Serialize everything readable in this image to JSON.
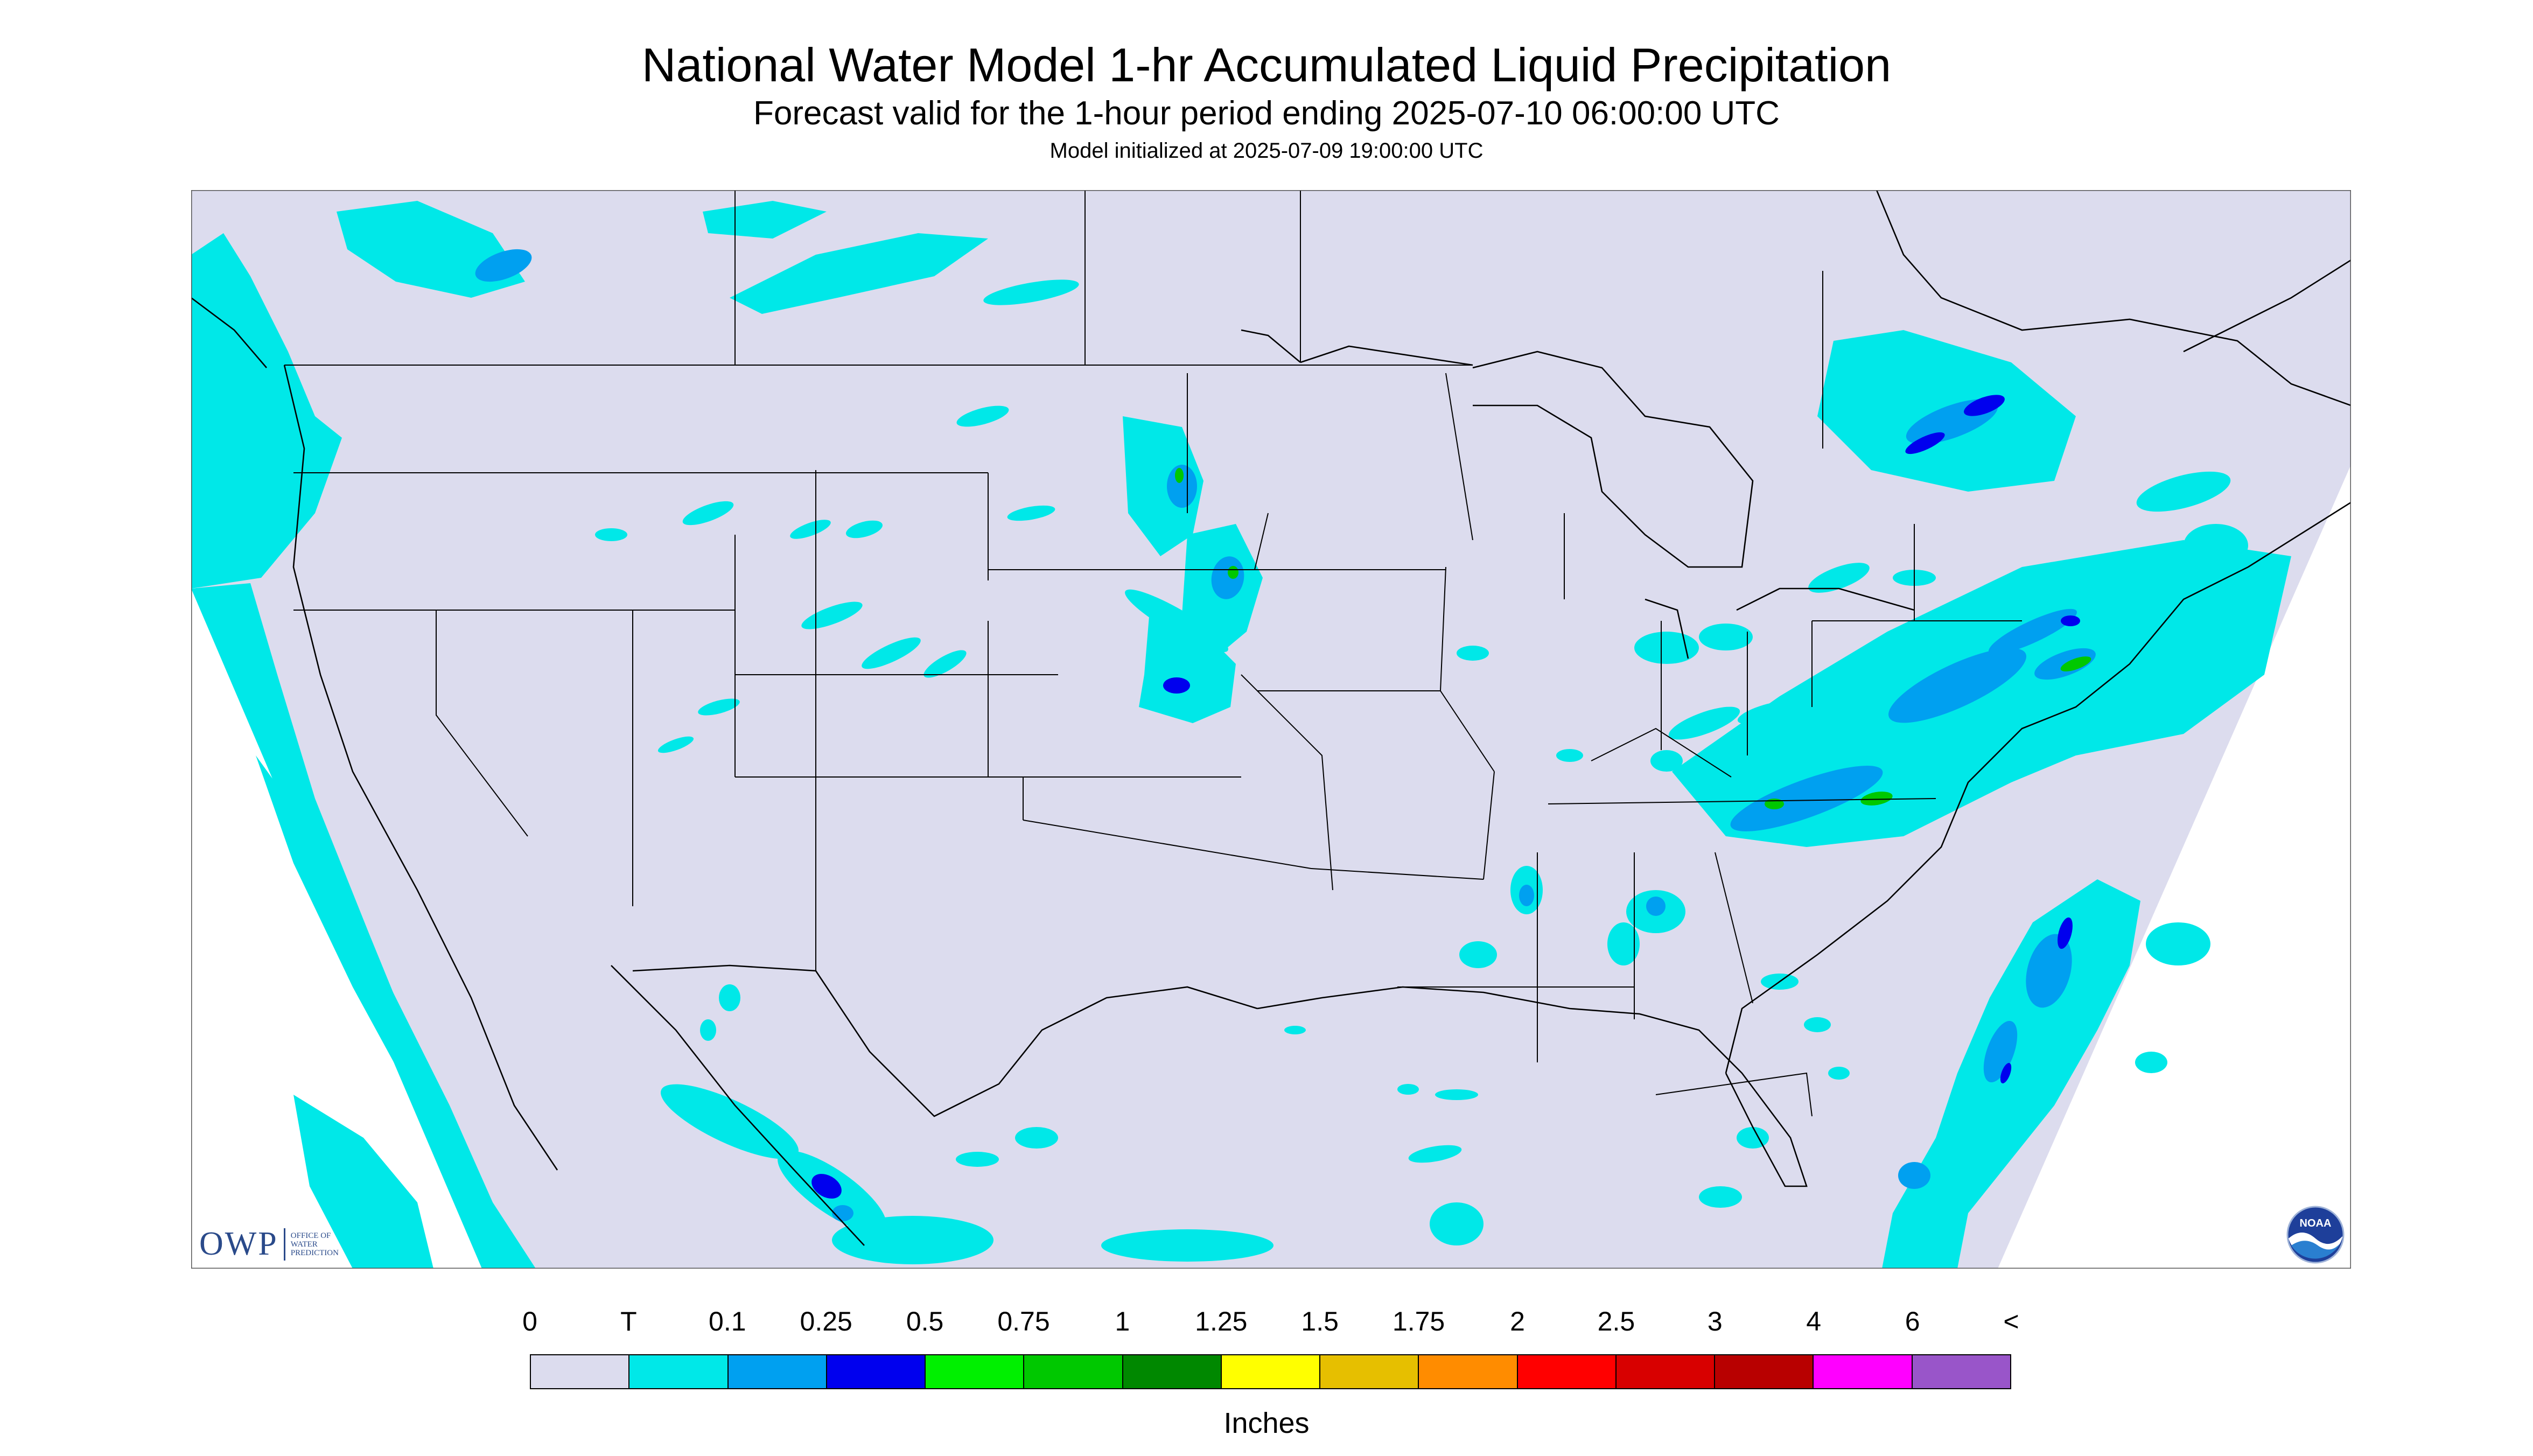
{
  "header": {
    "title": "National Water Model 1-hr Accumulated Liquid Precipitation",
    "subtitle": "Forecast valid for the 1-hour period ending 2025-07-10 06:00:00 UTC",
    "init": "Model initialized at 2025-07-09 19:00:00 UTC"
  },
  "legend": {
    "labels": [
      "0",
      "T",
      "0.1",
      "0.25",
      "0.5",
      "0.75",
      "1",
      "1.25",
      "1.5",
      "1.75",
      "2",
      "2.5",
      "3",
      "4",
      "6",
      "<"
    ],
    "colors": [
      "#dcdcee",
      "#00e8e8",
      "#00a0f0",
      "#0000ee",
      "#00f000",
      "#00c800",
      "#008800",
      "#ffff00",
      "#e6bf00",
      "#ff8c00",
      "#ff0000",
      "#d80000",
      "#b80000",
      "#ff00ff",
      "#9955c9"
    ],
    "units": "Inches"
  },
  "map": {
    "background_color": "#dcdcee",
    "trace_color": "#00e8e8",
    "light_color": "#00a0f0",
    "moderate_color": "#0000ee",
    "heavy_color": "#00c800",
    "outline_color": "#000000"
  },
  "logos": {
    "owp_mark": "OWP",
    "owp_text": [
      "OFFICE OF",
      "WATER",
      "PREDICTION"
    ],
    "noaa_text": "NOAA",
    "noaa_icon": "noaa-seal-icon"
  }
}
